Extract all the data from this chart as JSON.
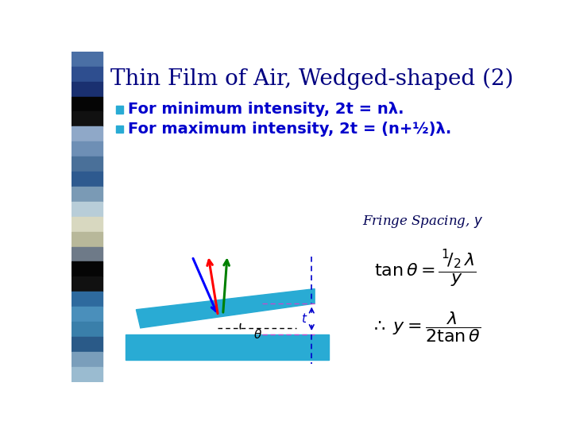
{
  "title": "Thin Film of Air, Wedged-shaped (2)",
  "title_color": "#000080",
  "title_fontsize": 20,
  "bg_color": "#ffffff",
  "bullet_color": "#29ABD4",
  "text_color": "#0000CC",
  "line1": "For minimum intensity, 2t = nλ.",
  "line2": "For maximum intensity, 2t = (n+½)λ.",
  "glass_color": "#29ABD4",
  "sidebar_colors": [
    "#4A6FA5",
    "#2E4E8F",
    "#1A3070",
    "#050505",
    "#111111",
    "#8FA8C8",
    "#6E8FB5",
    "#4A7099",
    "#2E5A8F",
    "#7A9AB5",
    "#B8CDD8",
    "#D8D8C0",
    "#B8B89A",
    "#6E7A88",
    "#050505",
    "#111111",
    "#2E6A9E",
    "#4A8FBB",
    "#3A7FAA",
    "#2A5A88",
    "#7A9EBB",
    "#9ABBD0"
  ]
}
